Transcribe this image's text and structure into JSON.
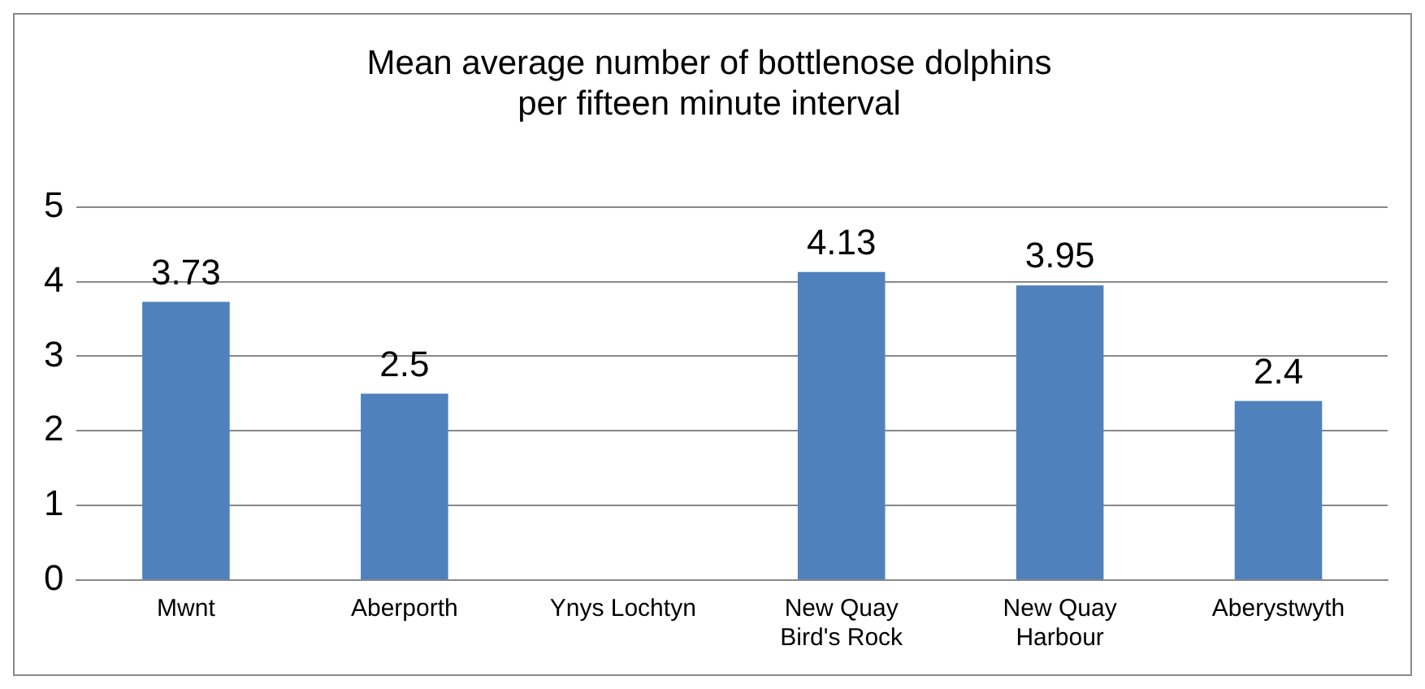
{
  "chart_data": {
    "type": "bar",
    "title": "Mean average number of bottlenose dolphins\nper fifteen minute interval",
    "categories": [
      "Mwnt",
      "Aberporth",
      "Ynys Lochtyn",
      "New Quay Bird's Rock",
      "New Quay Harbour",
      "Aberystwyth"
    ],
    "values": [
      3.73,
      2.5,
      null,
      4.13,
      3.95,
      2.4
    ],
    "color": "#4f81bd",
    "ylim": [
      0,
      5
    ],
    "yticks": [
      0,
      1,
      2,
      3,
      4,
      5
    ],
    "grid": "y",
    "legend": false,
    "data_labels": true
  }
}
